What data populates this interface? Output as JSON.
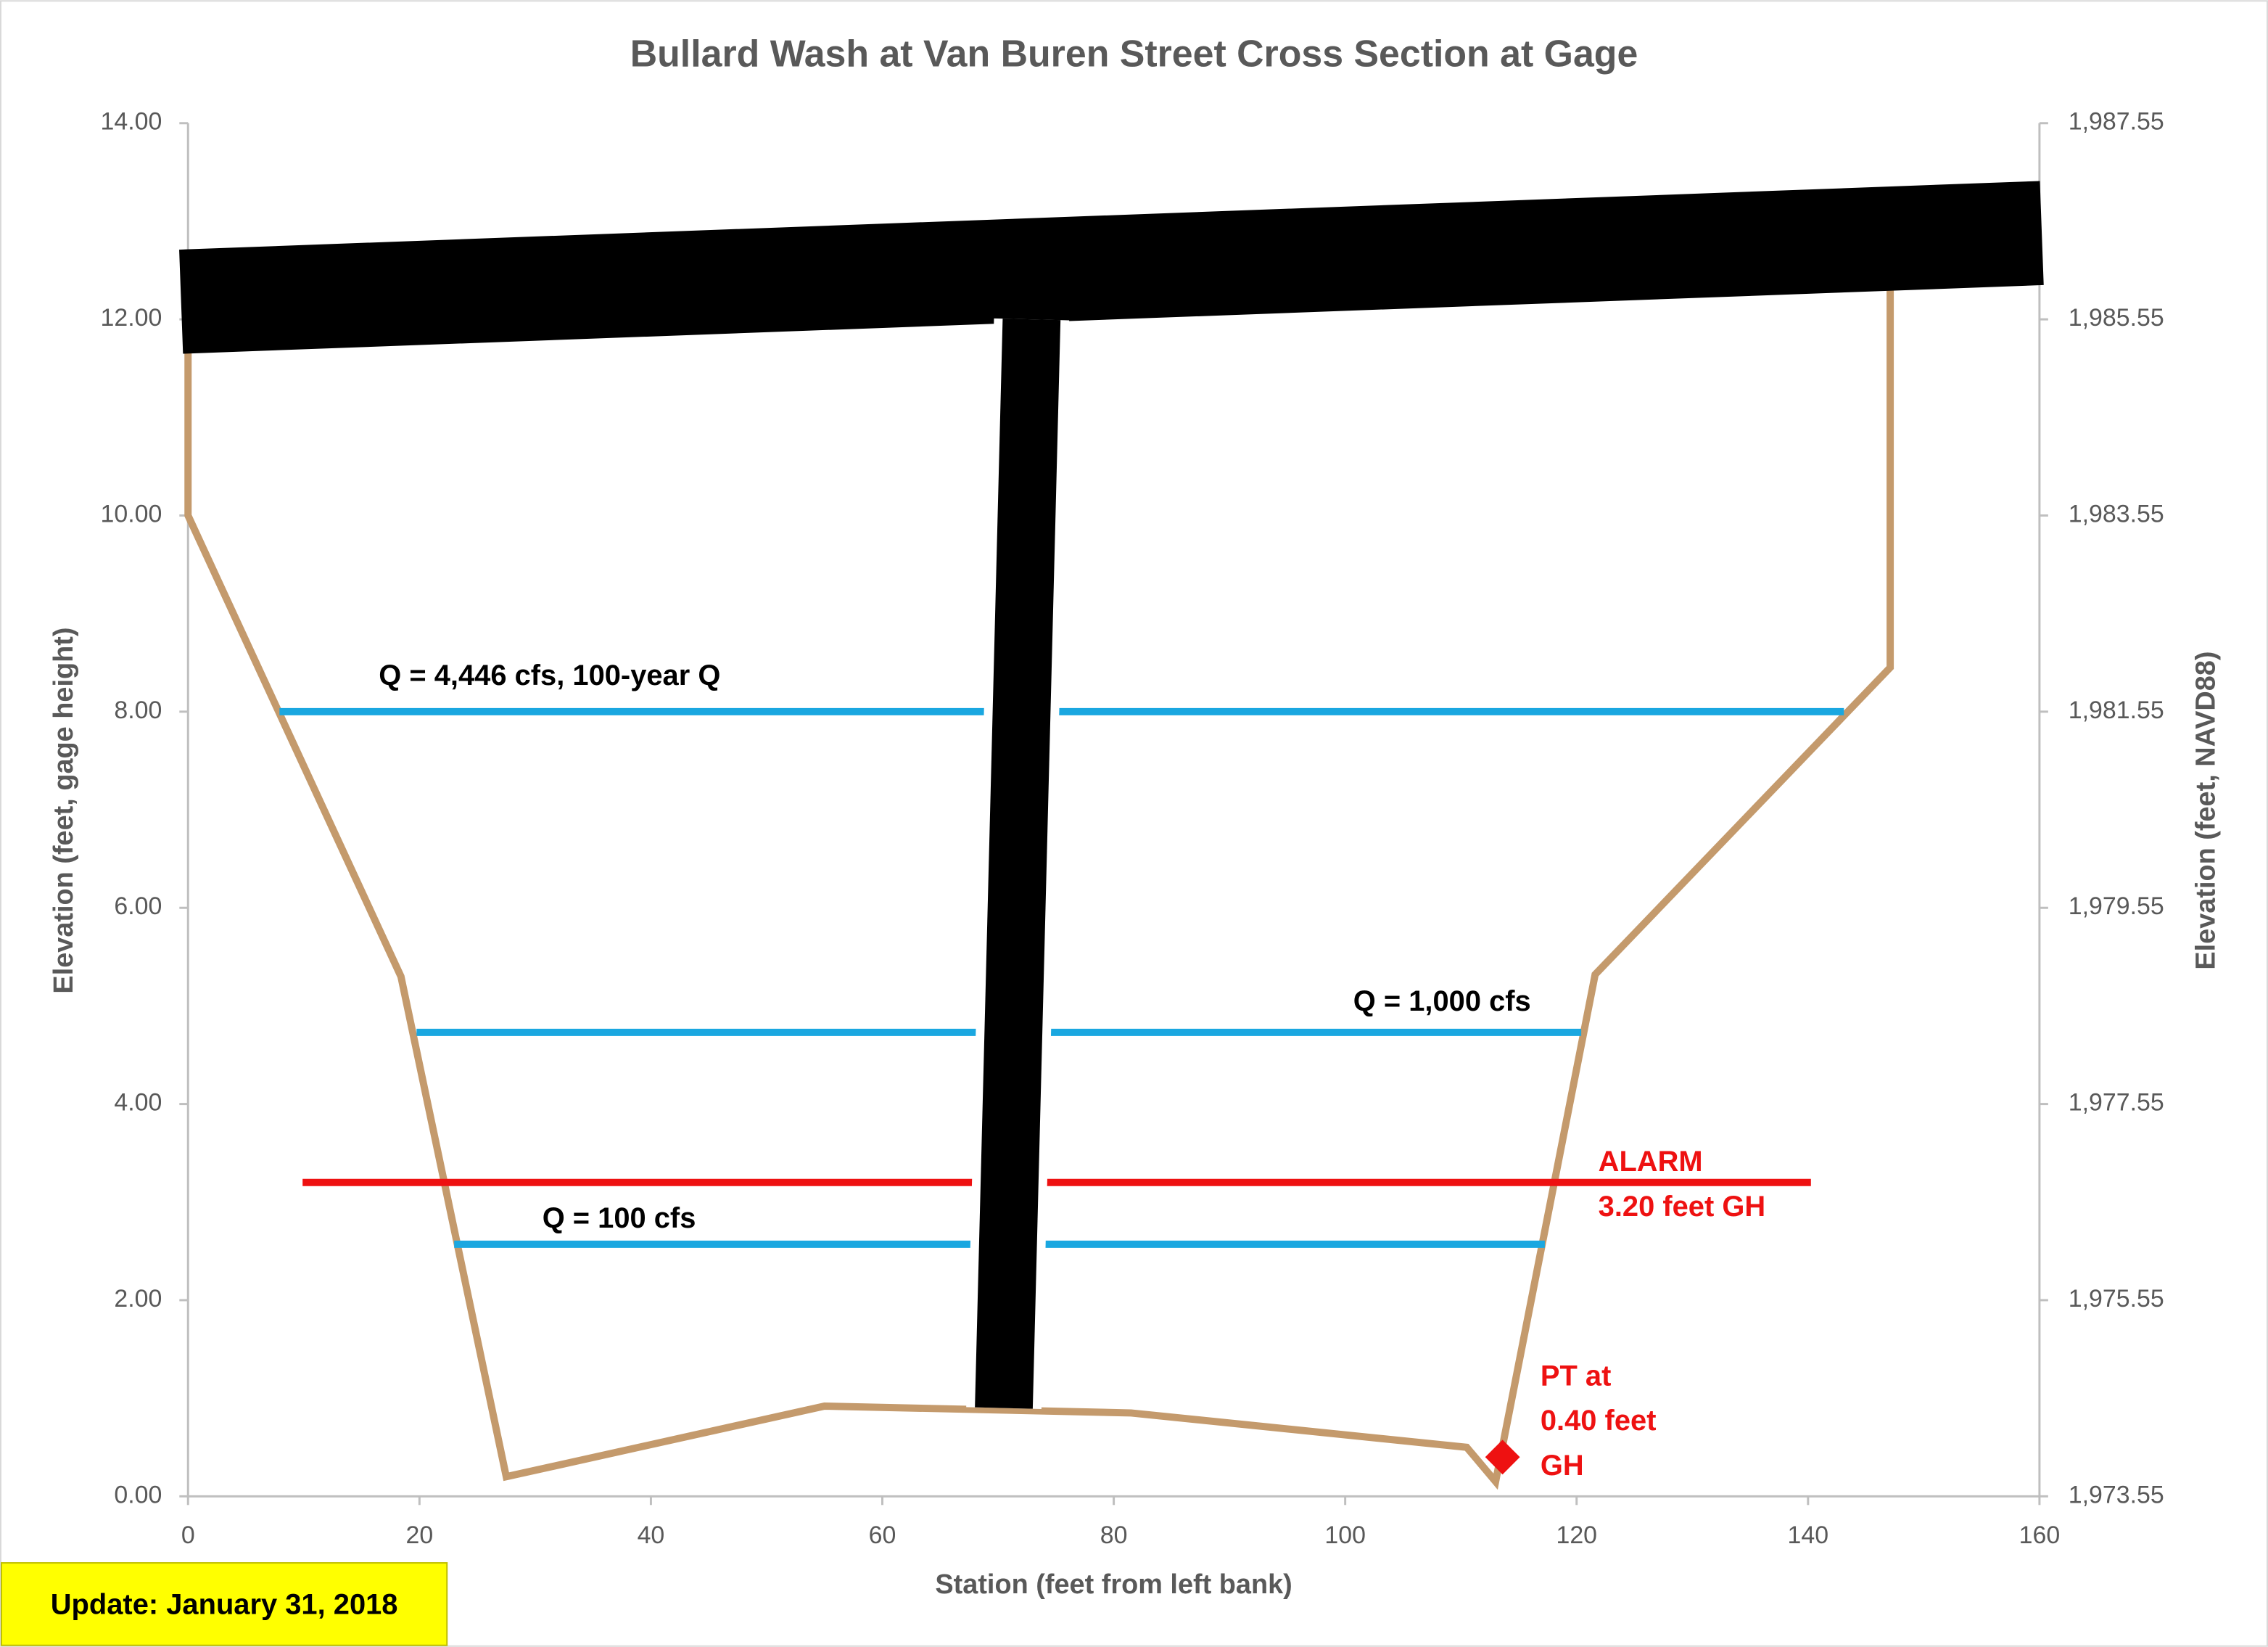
{
  "chart_data": {
    "type": "line",
    "title": "Bullard Wash at Van Buren Street Cross Section at Gage",
    "x_label": "Station (feet from left bank)",
    "y_label": "Elevation (feet, gage height)",
    "y2_label": "Elevation (feet, NAVD88)",
    "xlim": [
      0,
      160
    ],
    "xticks": [
      0,
      20,
      40,
      60,
      80,
      100,
      120,
      140,
      160
    ],
    "ylim": [
      0,
      14
    ],
    "yticks": [
      {
        "value": 0,
        "label": "0.00"
      },
      {
        "value": 2,
        "label": "2.00"
      },
      {
        "value": 4,
        "label": "4.00"
      },
      {
        "value": 6,
        "label": "6.00"
      },
      {
        "value": 8,
        "label": "8.00"
      },
      {
        "value": 10,
        "label": "10.00"
      },
      {
        "value": 12,
        "label": "12.00"
      },
      {
        "value": 14,
        "label": "14.00"
      }
    ],
    "y2lim": [
      1973.55,
      1987.55
    ],
    "y2ticks": [
      {
        "value": 1973.55,
        "label": "1,973.55"
      },
      {
        "value": 1975.55,
        "label": "1,975.55"
      },
      {
        "value": 1977.55,
        "label": "1,977.55"
      },
      {
        "value": 1979.55,
        "label": "1,979.55"
      },
      {
        "value": 1981.55,
        "label": "1,981.55"
      },
      {
        "value": 1983.55,
        "label": "1,983.55"
      },
      {
        "value": 1985.55,
        "label": "1,985.55"
      },
      {
        "value": 1987.55,
        "label": "1,987.55"
      }
    ],
    "grid": false,
    "series": [
      {
        "color": "#c49a6c",
        "x": [
          0,
          0,
          18.4,
          27.5,
          55,
          81.5,
          110.5,
          113,
          121.6,
          147.1,
          147.1
        ],
        "values": [
          11.7,
          10.0,
          5.3,
          0.2,
          0.92,
          0.85,
          0.5,
          0.15,
          5.32,
          8.45,
          12.3
        ]
      },
      {
        "color": "#1aa7e0",
        "x": [
          7.9,
          143.1
        ],
        "values": [
          8.0,
          8.0
        ]
      },
      {
        "color": "#1aa7e0",
        "x": [
          19.75,
          120.4
        ],
        "values": [
          4.73,
          4.73
        ]
      },
      {
        "color": "#1aa7e0",
        "x": [
          23,
          117.25
        ],
        "values": [
          2.57,
          2.57
        ]
      },
      {
        "color": "#ee1111",
        "x": [
          9.9,
          140.25
        ],
        "values": [
          3.2,
          3.2
        ]
      },
      {
        "color": "#000000",
        "x": [
          -0.6,
          160.2
        ],
        "values": [
          12.18,
          12.88
        ]
      },
      {
        "color": "#000000",
        "x": [
          72.9,
          70.5
        ],
        "values": [
          12.0,
          0.9
        ]
      },
      {
        "color": "#ee1111",
        "marker": "diamond",
        "x": [
          113.6
        ],
        "values": [
          0.4
        ]
      }
    ],
    "annotations": [
      "Q = 4,446 cfs, 100-year Q",
      "Q = 1,000 cfs",
      "Q = 100 cfs",
      "ALARM",
      "3.20 feet GH",
      "PT at",
      "0.40 feet",
      "GH"
    ],
    "footnote": "Update: January 31, 2018"
  }
}
